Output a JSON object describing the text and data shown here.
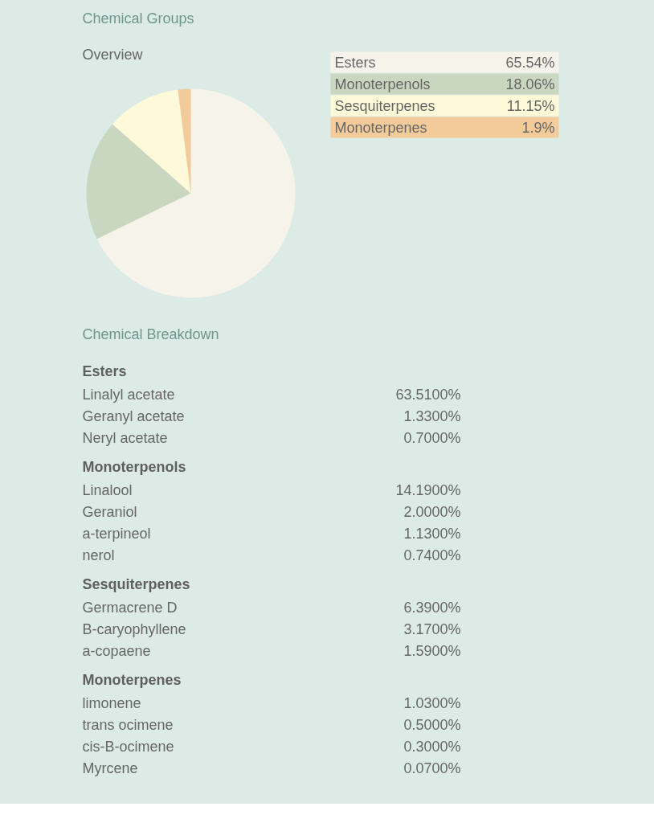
{
  "chart_data": [
    {
      "type": "pie",
      "title": "Chemical Groups",
      "subtitle": "Overview",
      "categories": [
        "Esters",
        "Monoterpenols",
        "Sesquiterpenes",
        "Monoterpenes"
      ],
      "values": [
        65.54,
        18.06,
        11.15,
        1.9
      ],
      "colors": [
        "#f6f3ea",
        "#c9d6c0",
        "#fef9d8",
        "#f3cb9b"
      ],
      "value_labels": [
        "65.54%",
        "18.06%",
        "11.15%",
        "1.9%"
      ],
      "legend": "top right"
    },
    {
      "type": "other",
      "title": "Chemical Breakdown",
      "categories": [
        "Linalyl acetate",
        "Geranyl acetate",
        "Neryl acetate",
        "Linalool",
        "Geraniol",
        "a-terpineol",
        "nerol",
        "Germacrene D",
        "B-caryophyllene",
        "a-copaene",
        "limonene",
        "trans ocimene",
        "cis-B-ocimene",
        "Myrcene"
      ],
      "series": [
        {
          "name": "Esters",
          "values": [
            63.51,
            1.33,
            0.7,
            null,
            null,
            null,
            null,
            null,
            null,
            null,
            null,
            null,
            null,
            null
          ],
          "value_labels": [
            "63.5100%",
            "1.3300%",
            "0.7000%",
            null,
            null,
            null,
            null,
            null,
            null,
            null,
            null,
            null,
            null,
            null
          ]
        },
        {
          "name": "Monoterpenols",
          "values": [
            null,
            null,
            null,
            14.19,
            2.0,
            1.13,
            0.74,
            null,
            null,
            null,
            null,
            null,
            null,
            null
          ],
          "value_labels": [
            null,
            null,
            null,
            "14.1900%",
            "2.0000%",
            "1.1300%",
            "0.7400%",
            null,
            null,
            null,
            null,
            null,
            null,
            null
          ]
        },
        {
          "name": "Sesquiterpenes",
          "values": [
            null,
            null,
            null,
            null,
            null,
            null,
            null,
            6.39,
            3.17,
            1.59,
            null,
            null,
            null,
            null
          ],
          "value_labels": [
            null,
            null,
            null,
            null,
            null,
            null,
            null,
            "6.3900%",
            "3.1700%",
            "1.5900%",
            null,
            null,
            null,
            null
          ]
        },
        {
          "name": "Monoterpenes",
          "values": [
            null,
            null,
            null,
            null,
            null,
            null,
            null,
            null,
            null,
            null,
            1.03,
            0.5,
            0.3,
            0.07
          ],
          "value_labels": [
            null,
            null,
            null,
            null,
            null,
            null,
            null,
            null,
            null,
            null,
            "1.0300%",
            "0.5000%",
            "0.3000%",
            "0.0700%"
          ]
        }
      ]
    }
  ]
}
